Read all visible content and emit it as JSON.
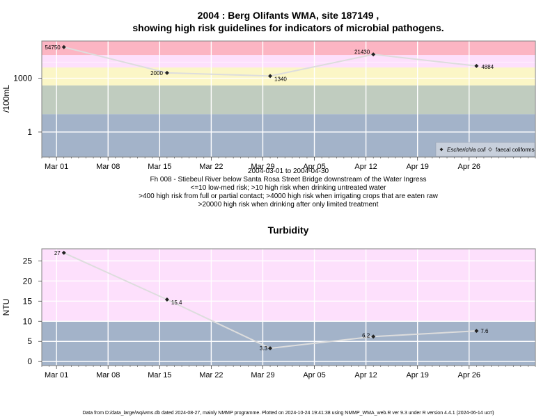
{
  "figure_title_line1": "2004 : Berg Olifants WMA, site 187149 ,",
  "figure_title_line2": "showing high risk guidelines for indicators of microbial pathogens.",
  "caption_lines": [
    "2004-03-01 to 2004-04-30",
    "Fh 008 - Stiebeul River below Santa Rosa Street Bridge downstream of the Water Ingress",
    "<=10 low-med risk; >10 high risk when drinking untreated water",
    ">400 high risk from full or partial contact; >4000 high risk when irrigating crops that are eaten raw",
    ">20000 high risk when drinking after only limited treatment"
  ],
  "footer": "Data from D:/data_large/wq/wms.db dated 2024-08-27, mainly NMMP programme. Plotted on 2024-10-24 19:41:38 using NMMP_WMA_web.R ver 9.3 under R version 4.4.1 (2024-06-14 ucrt)",
  "colors": {
    "band_blue": "#a3b3c9",
    "band_green": "#c0ccbf",
    "band_yellow": "#fbf6c6",
    "band_pink": "#fde0fc",
    "band_red": "#fcb5c3",
    "line": "#dddddd",
    "marker": "#222222",
    "legend_bg": "#c8d0dc"
  },
  "chart_data": [
    {
      "type": "line",
      "title": "",
      "xlabel": "",
      "ylabel": "/100mL",
      "yscale": "log",
      "x_tick_labels": [
        "Mar 01",
        "Mar 08",
        "Mar 15",
        "Mar 22",
        "Mar 29",
        "Apr 05",
        "Apr 12",
        "Apr 19",
        "Apr 26"
      ],
      "y_tick_labels": [
        "1",
        "1000"
      ],
      "xlim": [
        "2004-02-28",
        "2004-05-05"
      ],
      "ylim": [
        0.04,
        120000
      ],
      "grid": true,
      "legend_position": "bottom-right",
      "risk_bands": [
        {
          "from": 0.04,
          "to": 10,
          "color": "band_blue"
        },
        {
          "from": 10,
          "to": 400,
          "color": "band_green"
        },
        {
          "from": 400,
          "to": 4000,
          "color": "band_yellow"
        },
        {
          "from": 4000,
          "to": 20000,
          "color": "band_pink"
        },
        {
          "from": 20000,
          "to": 120000,
          "color": "band_red"
        }
      ],
      "series": [
        {
          "name": "Escherichia coli",
          "x": [
            "2004-03-02",
            "2004-03-16",
            "2004-03-30",
            "2004-04-13",
            "2004-04-27"
          ],
          "values": [
            54750,
            2000,
            1340,
            21430,
            4884
          ],
          "labels": [
            "54750",
            "2000",
            "1340",
            "21430",
            "4884"
          ]
        }
      ],
      "legend": [
        "Escherichia coli",
        "faecal coliforms"
      ]
    },
    {
      "type": "line",
      "title": "Turbidity",
      "xlabel": "",
      "ylabel": "NTU",
      "yscale": "linear",
      "x_tick_labels": [
        "Mar 01",
        "Mar 08",
        "Mar 15",
        "Mar 22",
        "Mar 29",
        "Apr 05",
        "Apr 12",
        "Apr 19",
        "Apr 26"
      ],
      "y_tick_labels": [
        "0",
        "5",
        "10",
        "15",
        "20",
        "25"
      ],
      "xlim": [
        "2004-02-28",
        "2004-05-05"
      ],
      "ylim": [
        -1,
        28
      ],
      "grid": true,
      "risk_bands": [
        {
          "from": -1,
          "to": 10,
          "color": "band_blue"
        },
        {
          "from": 10,
          "to": 28,
          "color": "band_pink"
        }
      ],
      "series": [
        {
          "name": "Turbidity",
          "x": [
            "2004-03-02",
            "2004-03-16",
            "2004-03-30",
            "2004-04-13",
            "2004-04-27"
          ],
          "values": [
            27,
            15.4,
            3.3,
            6.2,
            7.6
          ],
          "labels": [
            "27",
            "15.4",
            "3.3",
            "6.2",
            "7.6"
          ]
        }
      ]
    }
  ]
}
